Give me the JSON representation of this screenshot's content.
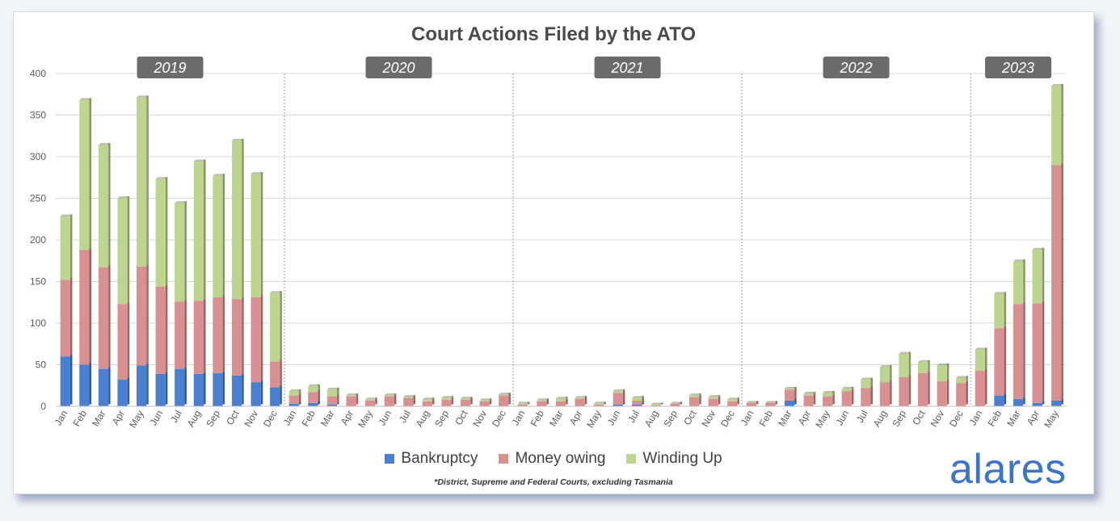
{
  "colors": {
    "bankruptcy": "#4a80cf",
    "money_owing": "#d99090",
    "winding_up": "#bcd68f",
    "year_tag_bg": "#6b6b6b",
    "grid": "#d9d9d9",
    "brand": "#3d74c7"
  },
  "chart_data": {
    "type": "bar",
    "stacked": true,
    "title": "Court Actions Filed by the ATO",
    "ylim": [
      0,
      400
    ],
    "yticks": [
      0,
      50,
      100,
      150,
      200,
      250,
      300,
      350,
      400
    ],
    "grid": true,
    "legend_position": "bottom-center",
    "year_groups": [
      {
        "label": "2019",
        "months": [
          "Jan",
          "Feb",
          "Mar",
          "Apr",
          "May",
          "Jun",
          "Jul",
          "Aug",
          "Sep",
          "Oct",
          "Nov",
          "Dec"
        ]
      },
      {
        "label": "2020",
        "months": [
          "Jan",
          "Feb",
          "Mar",
          "Apr",
          "May",
          "Jun",
          "Jul",
          "Aug",
          "Sep",
          "Oct",
          "Nov",
          "Dec"
        ]
      },
      {
        "label": "2021",
        "months": [
          "Jan",
          "Feb",
          "Mar",
          "Apr",
          "May",
          "Jun",
          "Jul",
          "Aug",
          "Sep",
          "Oct",
          "Nov",
          "Dec"
        ]
      },
      {
        "label": "2022",
        "months": [
          "Jan",
          "Feb",
          "Mar",
          "Apr",
          "May",
          "Jun",
          "Jul",
          "Aug",
          "Sep",
          "Oct",
          "Nov",
          "Dec"
        ]
      },
      {
        "label": "2023",
        "months": [
          "Jan",
          "Feb",
          "Mar",
          "Apr",
          "May"
        ]
      }
    ],
    "series": [
      {
        "name": "Bankruptcy",
        "values": [
          60,
          50,
          45,
          32,
          49,
          39,
          45,
          39,
          40,
          37,
          29,
          23,
          3,
          4,
          2,
          0,
          0,
          0,
          0,
          0,
          0,
          0,
          0,
          0,
          0,
          0,
          0,
          0,
          0,
          2,
          2,
          0,
          0,
          0,
          0,
          0,
          0,
          0,
          7,
          0,
          0,
          0,
          0,
          0,
          0,
          0,
          0,
          0,
          0,
          13,
          9,
          4,
          7
        ]
      },
      {
        "name": "Money owing",
        "values": [
          92,
          138,
          122,
          91,
          119,
          105,
          81,
          88,
          91,
          92,
          102,
          31,
          10,
          13,
          10,
          12,
          7,
          12,
          10,
          6,
          8,
          8,
          6,
          13,
          2,
          6,
          6,
          9,
          2,
          14,
          5,
          1,
          3,
          11,
          9,
          6,
          4,
          4,
          13,
          13,
          12,
          18,
          22,
          29,
          35,
          40,
          30,
          28,
          43,
          81,
          114,
          120,
          283
        ]
      },
      {
        "name": "Winding Up",
        "values": [
          76,
          180,
          147,
          127,
          203,
          129,
          118,
          167,
          146,
          190,
          148,
          82,
          5,
          7,
          8,
          1,
          1,
          1,
          1,
          2,
          2,
          1,
          1,
          1,
          1,
          1,
          3,
          1,
          1,
          2,
          3,
          1,
          0,
          2,
          2,
          2,
          0,
          0,
          1,
          2,
          4,
          3,
          10,
          18,
          28,
          13,
          19,
          6,
          25,
          41,
          51,
          64,
          95
        ]
      }
    ],
    "footnote": "*District, Supreme and Federal Courts, excluding Tasmania"
  },
  "legend": {
    "bankruptcy_label": "Bankruptcy",
    "money_owing_label": "Money owing",
    "winding_up_label": "Winding Up"
  },
  "brand_text": "alares"
}
